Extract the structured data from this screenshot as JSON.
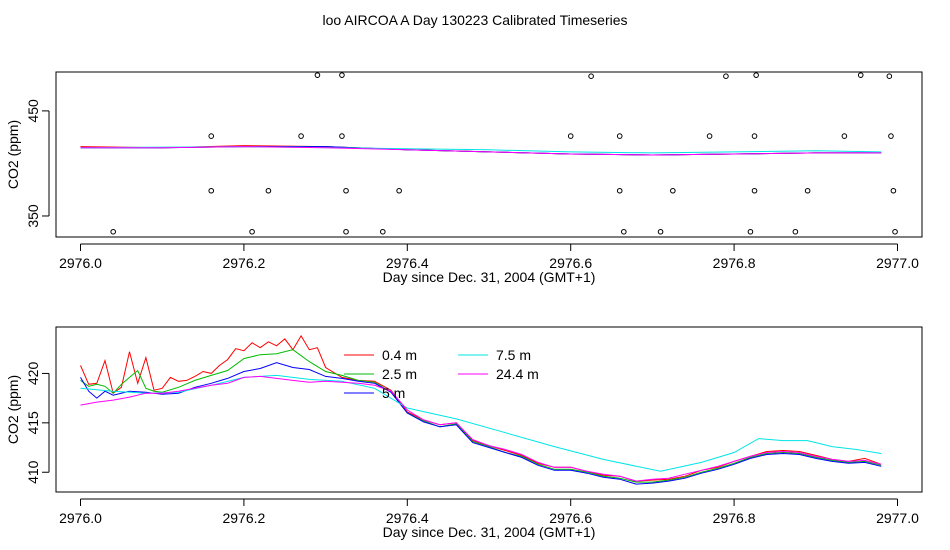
{
  "title": "loo AIRCOA A  Day 130223  Calibrated Timeseries",
  "colors": {
    "0.4 m": "#ff0000",
    "2.5 m": "#00bb00",
    "5 m": "#0000ff",
    "7.5 m": "#00e5e5",
    "24.4 m": "#ff00ff",
    "frame": "#000000"
  },
  "chart_data": [
    {
      "type": "scatter+line",
      "xlabel": "Day since Dec. 31, 2004 (GMT+1)",
      "ylabel": "CO2 (ppm)",
      "xlim": [
        2975.97,
        2977.03
      ],
      "ylim": [
        330,
        487
      ],
      "xticks": [
        2976.0,
        2976.2,
        2976.4,
        2976.6,
        2976.8,
        2977.0
      ],
      "xtick_labels": [
        "2976.0",
        "2976.2",
        "2976.4",
        "2976.6",
        "2976.8",
        "2977.0"
      ],
      "yticks": [
        350,
        450
      ],
      "ytick_labels": [
        "350",
        "450"
      ],
      "points": [
        {
          "x": 2976.04,
          "y": 335
        },
        {
          "x": 2976.16,
          "y": 426
        },
        {
          "x": 2976.16,
          "y": 374
        },
        {
          "x": 2976.21,
          "y": 335
        },
        {
          "x": 2976.23,
          "y": 374
        },
        {
          "x": 2976.27,
          "y": 426
        },
        {
          "x": 2976.29,
          "y": 484
        },
        {
          "x": 2976.32,
          "y": 484
        },
        {
          "x": 2976.32,
          "y": 426
        },
        {
          "x": 2976.325,
          "y": 374
        },
        {
          "x": 2976.325,
          "y": 335
        },
        {
          "x": 2976.37,
          "y": 335
        },
        {
          "x": 2976.39,
          "y": 374
        },
        {
          "x": 2976.6,
          "y": 426
        },
        {
          "x": 2976.625,
          "y": 483
        },
        {
          "x": 2976.66,
          "y": 426
        },
        {
          "x": 2976.66,
          "y": 374
        },
        {
          "x": 2976.665,
          "y": 335
        },
        {
          "x": 2976.71,
          "y": 335
        },
        {
          "x": 2976.725,
          "y": 374
        },
        {
          "x": 2976.77,
          "y": 426
        },
        {
          "x": 2976.79,
          "y": 483
        },
        {
          "x": 2976.82,
          "y": 335
        },
        {
          "x": 2976.825,
          "y": 426
        },
        {
          "x": 2976.825,
          "y": 374
        },
        {
          "x": 2976.827,
          "y": 484
        },
        {
          "x": 2976.875,
          "y": 335
        },
        {
          "x": 2976.89,
          "y": 374
        },
        {
          "x": 2976.935,
          "y": 426
        },
        {
          "x": 2976.955,
          "y": 484
        },
        {
          "x": 2976.99,
          "y": 483
        },
        {
          "x": 2976.992,
          "y": 426
        },
        {
          "x": 2976.995,
          "y": 374
        },
        {
          "x": 2976.997,
          "y": 335
        }
      ],
      "series": [
        {
          "name": "0.4 m",
          "x": [
            2976.0,
            2976.1,
            2976.2,
            2976.3,
            2976.4,
            2976.5,
            2976.6,
            2976.7,
            2976.8,
            2976.9,
            2976.98
          ],
          "y": [
            416,
            415,
            417,
            416,
            413,
            411,
            409,
            408,
            409,
            410,
            410
          ]
        },
        {
          "name": "2.5 m",
          "x": [
            2976.0,
            2976.1,
            2976.2,
            2976.3,
            2976.4,
            2976.5,
            2976.6,
            2976.7,
            2976.8,
            2976.9,
            2976.98
          ],
          "y": [
            415,
            415,
            416,
            416,
            413,
            411,
            409,
            408,
            409,
            410,
            410
          ]
        },
        {
          "name": "5 m",
          "x": [
            2976.0,
            2976.1,
            2976.2,
            2976.3,
            2976.4,
            2976.5,
            2976.6,
            2976.7,
            2976.8,
            2976.9,
            2976.98
          ],
          "y": [
            415,
            415,
            416,
            416,
            413,
            411,
            409,
            408,
            409,
            410,
            410
          ]
        },
        {
          "name": "7.5 m",
          "x": [
            2976.0,
            2976.2,
            2976.4,
            2976.5,
            2976.6,
            2976.7,
            2976.8,
            2976.9,
            2976.98
          ],
          "y": [
            415,
            416,
            414,
            413,
            411,
            410,
            411,
            412,
            411
          ]
        },
        {
          "name": "24.4 m",
          "x": [
            2976.0,
            2976.1,
            2976.2,
            2976.3,
            2976.4,
            2976.5,
            2976.6,
            2976.7,
            2976.8,
            2976.9,
            2976.98
          ],
          "y": [
            415,
            415,
            416,
            415,
            413,
            411,
            409,
            408,
            409,
            410,
            410
          ]
        }
      ]
    },
    {
      "type": "line",
      "xlabel": "Day since Dec. 31, 2004 (GMT+1)",
      "ylabel": "CO2 (ppm)",
      "xlim": [
        2975.97,
        2977.03
      ],
      "ylim": [
        408.0,
        424.7
      ],
      "xticks": [
        2976.0,
        2976.2,
        2976.4,
        2976.6,
        2976.8,
        2977.0
      ],
      "xtick_labels": [
        "2976.0",
        "2976.2",
        "2976.4",
        "2976.6",
        "2976.8",
        "2977.0"
      ],
      "yticks": [
        410,
        415,
        420
      ],
      "ytick_labels": [
        "410",
        "415",
        "420"
      ],
      "legend": {
        "placement": "top-center",
        "entries": [
          "0.4 m",
          "2.5 m",
          "5 m",
          "7.5 m",
          "24.4 m"
        ]
      },
      "series": [
        {
          "name": "0.4 m",
          "x": [
            2976.0,
            2976.01,
            2976.02,
            2976.03,
            2976.04,
            2976.05,
            2976.06,
            2976.07,
            2976.08,
            2976.09,
            2976.1,
            2976.11,
            2976.12,
            2976.13,
            2976.14,
            2976.15,
            2976.16,
            2976.17,
            2976.18,
            2976.19,
            2976.2,
            2976.21,
            2976.22,
            2976.23,
            2976.24,
            2976.25,
            2976.26,
            2976.27,
            2976.28,
            2976.29,
            2976.3,
            2976.32,
            2976.34,
            2976.36,
            2976.38,
            2976.4,
            2976.42,
            2976.44,
            2976.46,
            2976.48,
            2976.5,
            2976.52,
            2976.54,
            2976.56,
            2976.58,
            2976.6,
            2976.62,
            2976.64,
            2976.66,
            2976.68,
            2976.7,
            2976.72,
            2976.74,
            2976.76,
            2976.78,
            2976.8,
            2976.82,
            2976.84,
            2976.86,
            2976.88,
            2976.9,
            2976.92,
            2976.94,
            2976.96,
            2976.98
          ],
          "y": [
            420.8,
            418.9,
            419.0,
            421.3,
            418.0,
            418.6,
            422.2,
            419.0,
            421.6,
            418.3,
            418.5,
            419.6,
            419.2,
            419.3,
            419.7,
            420.2,
            420.0,
            420.8,
            421.4,
            422.5,
            422.3,
            423.1,
            422.6,
            423.2,
            422.8,
            423.5,
            422.4,
            423.8,
            422.4,
            422.6,
            420.6,
            419.6,
            419.3,
            419.2,
            418.3,
            416.1,
            415.3,
            414.8,
            415.0,
            413.2,
            412.7,
            412.2,
            411.7,
            410.9,
            410.5,
            410.5,
            410.1,
            409.7,
            409.6,
            409.1,
            409.2,
            409.3,
            409.6,
            410.2,
            410.5,
            411.1,
            411.6,
            412.1,
            412.2,
            412.1,
            411.7,
            411.3,
            411.1,
            411.4,
            410.8
          ]
        },
        {
          "name": "2.5 m",
          "x": [
            2976.0,
            2976.01,
            2976.02,
            2976.03,
            2976.04,
            2976.05,
            2976.06,
            2976.07,
            2976.08,
            2976.09,
            2976.1,
            2976.12,
            2976.14,
            2976.16,
            2976.18,
            2976.2,
            2976.22,
            2976.24,
            2976.26,
            2976.28,
            2976.3,
            2976.32,
            2976.34,
            2976.36,
            2976.38,
            2976.4,
            2976.42,
            2976.44,
            2976.46,
            2976.48,
            2976.5,
            2976.52,
            2976.54,
            2976.56,
            2976.58,
            2976.6,
            2976.62,
            2976.64,
            2976.66,
            2976.68,
            2976.7,
            2976.72,
            2976.74,
            2976.76,
            2976.78,
            2976.8,
            2976.82,
            2976.84,
            2976.86,
            2976.88,
            2976.9,
            2976.92,
            2976.94,
            2976.96,
            2976.98
          ],
          "y": [
            419.3,
            418.7,
            418.9,
            418.7,
            418.0,
            418.9,
            419.6,
            420.3,
            418.5,
            418.2,
            418.1,
            418.6,
            419.3,
            419.8,
            420.3,
            421.5,
            421.9,
            422.0,
            422.4,
            421.2,
            420.2,
            419.8,
            419.3,
            419.1,
            418.1,
            416.0,
            415.2,
            414.6,
            414.9,
            413.1,
            412.6,
            412.0,
            411.6,
            410.8,
            410.3,
            410.3,
            410.0,
            409.6,
            409.4,
            409.0,
            409.0,
            409.2,
            409.5,
            410.0,
            410.4,
            410.9,
            411.5,
            411.9,
            412.0,
            411.9,
            411.5,
            411.2,
            411.0,
            411.1,
            410.7
          ]
        },
        {
          "name": "5 m",
          "x": [
            2976.0,
            2976.01,
            2976.02,
            2976.03,
            2976.04,
            2976.06,
            2976.08,
            2976.1,
            2976.12,
            2976.14,
            2976.16,
            2976.18,
            2976.2,
            2976.22,
            2976.24,
            2976.26,
            2976.28,
            2976.3,
            2976.32,
            2976.34,
            2976.36,
            2976.38,
            2976.4,
            2976.42,
            2976.44,
            2976.46,
            2976.48,
            2976.5,
            2976.52,
            2976.54,
            2976.56,
            2976.58,
            2976.6,
            2976.62,
            2976.64,
            2976.66,
            2976.68,
            2976.7,
            2976.72,
            2976.74,
            2976.76,
            2976.78,
            2976.8,
            2976.82,
            2976.84,
            2976.86,
            2976.88,
            2976.9,
            2976.92,
            2976.94,
            2976.96,
            2976.98
          ],
          "y": [
            419.6,
            418.2,
            417.5,
            418.2,
            417.8,
            418.2,
            418.1,
            417.9,
            418.0,
            418.6,
            419.0,
            419.5,
            420.2,
            420.5,
            421.1,
            420.6,
            420.4,
            419.7,
            419.5,
            419.2,
            419.0,
            418.1,
            416.0,
            415.1,
            414.6,
            414.8,
            413.0,
            412.5,
            412.0,
            411.5,
            410.7,
            410.2,
            410.2,
            409.9,
            409.5,
            409.3,
            408.8,
            408.9,
            409.1,
            409.4,
            409.9,
            410.3,
            410.8,
            411.4,
            411.8,
            411.9,
            411.8,
            411.4,
            411.1,
            410.9,
            411.0,
            410.6
          ]
        },
        {
          "name": "7.5 m",
          "x": [
            2976.0,
            2976.04,
            2976.08,
            2976.12,
            2976.16,
            2976.2,
            2976.24,
            2976.28,
            2976.32,
            2976.36,
            2976.4,
            2976.46,
            2976.52,
            2976.58,
            2976.64,
            2976.71,
            2976.76,
            2976.8,
            2976.83,
            2976.86,
            2976.89,
            2976.92,
            2976.95,
            2976.98
          ],
          "y": [
            418.5,
            418.2,
            418.0,
            418.1,
            418.8,
            419.6,
            419.8,
            419.4,
            419.2,
            418.5,
            416.5,
            415.4,
            414.0,
            412.6,
            411.3,
            410.1,
            411.0,
            412.0,
            413.4,
            413.2,
            413.2,
            412.6,
            412.3,
            411.9
          ]
        },
        {
          "name": "24.4 m",
          "x": [
            2976.0,
            2976.02,
            2976.04,
            2976.06,
            2976.08,
            2976.1,
            2976.12,
            2976.14,
            2976.16,
            2976.18,
            2976.2,
            2976.22,
            2976.24,
            2976.26,
            2976.28,
            2976.3,
            2976.32,
            2976.34,
            2976.36,
            2976.38,
            2976.4,
            2976.42,
            2976.44,
            2976.46,
            2976.48,
            2976.5,
            2976.52,
            2976.54,
            2976.56,
            2976.58,
            2976.6,
            2976.62,
            2976.64,
            2976.66,
            2976.68,
            2976.7,
            2976.72,
            2976.74,
            2976.76,
            2976.78,
            2976.8,
            2976.82,
            2976.84,
            2976.86,
            2976.88,
            2976.9,
            2976.92,
            2976.94,
            2976.96,
            2976.98
          ],
          "y": [
            416.8,
            417.1,
            417.3,
            417.6,
            418.0,
            418.0,
            418.2,
            418.5,
            418.8,
            419.0,
            419.6,
            419.7,
            419.5,
            419.3,
            419.1,
            419.2,
            419.1,
            419.0,
            418.8,
            418.2,
            416.3,
            415.3,
            414.8,
            415.0,
            413.3,
            412.7,
            412.3,
            411.8,
            411.0,
            410.5,
            410.5,
            410.1,
            409.8,
            409.6,
            409.1,
            409.3,
            409.4,
            409.8,
            410.2,
            410.6,
            411.1,
            411.6,
            412.0,
            412.1,
            412.0,
            411.6,
            411.3,
            411.1,
            411.2,
            410.8
          ]
        }
      ]
    }
  ]
}
